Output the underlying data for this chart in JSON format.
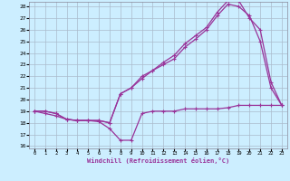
{
  "xlabel": "Windchill (Refroidissement éolien,°C)",
  "bg_color": "#cceeff",
  "line_color": "#993399",
  "grid_color": "#aabbcc",
  "xlim": [
    -0.5,
    23.5
  ],
  "ylim": [
    15.8,
    28.4
  ],
  "xticks": [
    0,
    1,
    2,
    3,
    4,
    5,
    6,
    7,
    8,
    9,
    10,
    11,
    12,
    13,
    14,
    15,
    16,
    17,
    18,
    19,
    20,
    21,
    22,
    23
  ],
  "yticks": [
    16,
    17,
    18,
    19,
    20,
    21,
    22,
    23,
    24,
    25,
    26,
    27,
    28
  ],
  "line1_x": [
    0,
    1,
    2,
    3,
    4,
    5,
    6,
    7,
    8,
    9,
    10,
    11,
    12,
    13,
    14,
    15,
    16,
    17,
    18,
    19,
    20,
    21,
    22,
    23
  ],
  "line1_y": [
    19.0,
    18.8,
    18.6,
    18.3,
    18.2,
    18.2,
    18.1,
    17.5,
    16.5,
    16.5,
    18.8,
    19.0,
    19.0,
    19.0,
    19.2,
    19.2,
    19.2,
    19.2,
    19.3,
    19.5,
    19.5,
    19.5,
    19.5,
    19.5
  ],
  "line2_x": [
    0,
    1,
    2,
    3,
    4,
    5,
    6,
    7,
    8,
    9,
    10,
    11,
    12,
    13,
    14,
    15,
    16,
    17,
    18,
    19,
    20,
    21,
    22,
    23
  ],
  "line2_y": [
    19.0,
    19.0,
    18.8,
    18.3,
    18.2,
    18.2,
    18.2,
    18.0,
    20.5,
    21.0,
    21.8,
    22.5,
    23.0,
    23.5,
    24.5,
    25.2,
    26.0,
    27.2,
    28.2,
    28.0,
    27.2,
    25.0,
    21.0,
    19.5
  ],
  "line3_x": [
    0,
    1,
    2,
    3,
    4,
    5,
    6,
    7,
    8,
    9,
    10,
    11,
    12,
    13,
    14,
    15,
    16,
    17,
    18,
    19,
    20,
    21,
    22,
    23
  ],
  "line3_y": [
    19.0,
    19.0,
    18.8,
    18.3,
    18.2,
    18.2,
    18.2,
    18.0,
    20.5,
    21.0,
    22.0,
    22.5,
    23.2,
    23.8,
    24.8,
    25.5,
    26.2,
    27.5,
    28.5,
    28.5,
    27.0,
    26.0,
    21.5,
    19.5
  ]
}
